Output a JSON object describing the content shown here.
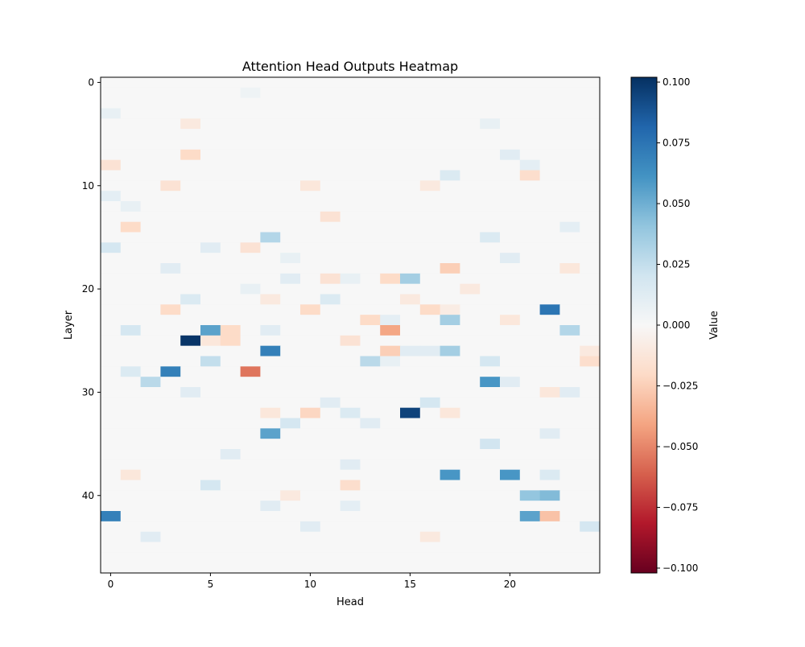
{
  "chart_data": {
    "type": "heatmap",
    "title": "Attention Head Outputs Heatmap",
    "xlabel": "Head",
    "ylabel": "Layer",
    "colorbar_label": "Value",
    "colormap": [
      "#67001f",
      "#b2182b",
      "#d6604d",
      "#f4a582",
      "#fddbc7",
      "#f7f7f7",
      "#d1e5f0",
      "#92c5de",
      "#4393c3",
      "#2166ac",
      "#053061"
    ],
    "n_cols": 25,
    "n_rows": 48,
    "vlim": [
      -0.102,
      0.102
    ],
    "default_value": 0.0,
    "x_ticks": [
      "0",
      "5",
      "10",
      "15",
      "20"
    ],
    "x_tick_values": [
      0,
      5,
      10,
      15,
      20
    ],
    "y_ticks": [
      "0",
      "10",
      "20",
      "30",
      "40"
    ],
    "y_tick_values": [
      0,
      10,
      20,
      30,
      40
    ],
    "colorbar_ticks": [
      "0.100",
      "0.075",
      "0.050",
      "0.025",
      "0.000",
      "−0.025",
      "−0.050",
      "−0.075",
      "−0.100"
    ],
    "colorbar_tick_values": [
      0.1,
      0.075,
      0.05,
      0.025,
      0,
      -0.025,
      -0.05,
      -0.075,
      -0.1
    ],
    "cells": [
      [
        1,
        7,
        0.005
      ],
      [
        3,
        0,
        0.008
      ],
      [
        4,
        4,
        -0.01
      ],
      [
        4,
        19,
        0.008
      ],
      [
        7,
        4,
        -0.02
      ],
      [
        7,
        20,
        0.012
      ],
      [
        8,
        0,
        -0.015
      ],
      [
        8,
        21,
        0.01
      ],
      [
        9,
        17,
        0.015
      ],
      [
        9,
        21,
        -0.018
      ],
      [
        10,
        3,
        -0.015
      ],
      [
        10,
        10,
        -0.012
      ],
      [
        10,
        16,
        -0.01
      ],
      [
        11,
        0,
        0.01
      ],
      [
        12,
        1,
        0.008
      ],
      [
        13,
        11,
        -0.015
      ],
      [
        14,
        1,
        -0.02
      ],
      [
        14,
        23,
        0.01
      ],
      [
        15,
        8,
        0.03
      ],
      [
        15,
        19,
        0.015
      ],
      [
        16,
        0,
        0.018
      ],
      [
        16,
        5,
        0.012
      ],
      [
        16,
        7,
        -0.015
      ],
      [
        17,
        9,
        0.008
      ],
      [
        17,
        20,
        0.012
      ],
      [
        18,
        3,
        0.012
      ],
      [
        18,
        17,
        -0.025
      ],
      [
        18,
        23,
        -0.012
      ],
      [
        19,
        9,
        0.012
      ],
      [
        19,
        11,
        -0.015
      ],
      [
        19,
        12,
        0.008
      ],
      [
        19,
        14,
        -0.02
      ],
      [
        19,
        15,
        0.035
      ],
      [
        20,
        7,
        0.008
      ],
      [
        20,
        18,
        -0.01
      ],
      [
        21,
        4,
        0.015
      ],
      [
        21,
        8,
        -0.01
      ],
      [
        21,
        11,
        0.015
      ],
      [
        21,
        15,
        -0.01
      ],
      [
        22,
        3,
        -0.02
      ],
      [
        22,
        10,
        -0.02
      ],
      [
        22,
        16,
        -0.02
      ],
      [
        22,
        17,
        -0.008
      ],
      [
        22,
        22,
        0.075
      ],
      [
        23,
        13,
        -0.02
      ],
      [
        23,
        14,
        0.01
      ],
      [
        23,
        17,
        0.035
      ],
      [
        23,
        20,
        -0.012
      ],
      [
        24,
        1,
        0.018
      ],
      [
        24,
        5,
        0.055
      ],
      [
        24,
        6,
        -0.02
      ],
      [
        24,
        8,
        0.012
      ],
      [
        24,
        14,
        -0.04
      ],
      [
        24,
        23,
        0.03
      ],
      [
        25,
        4,
        0.1
      ],
      [
        25,
        5,
        -0.012
      ],
      [
        25,
        6,
        -0.02
      ],
      [
        25,
        12,
        -0.015
      ],
      [
        26,
        8,
        0.07
      ],
      [
        26,
        14,
        -0.025
      ],
      [
        26,
        15,
        0.012
      ],
      [
        26,
        16,
        0.012
      ],
      [
        26,
        17,
        0.035
      ],
      [
        26,
        24,
        -0.01
      ],
      [
        27,
        5,
        0.025
      ],
      [
        27,
        13,
        0.028
      ],
      [
        27,
        14,
        0.008
      ],
      [
        27,
        19,
        0.018
      ],
      [
        27,
        24,
        -0.018
      ],
      [
        28,
        1,
        0.015
      ],
      [
        28,
        3,
        0.07
      ],
      [
        28,
        7,
        -0.055
      ],
      [
        29,
        2,
        0.028
      ],
      [
        29,
        19,
        0.06
      ],
      [
        29,
        20,
        0.012
      ],
      [
        30,
        4,
        0.012
      ],
      [
        30,
        22,
        -0.012
      ],
      [
        30,
        23,
        0.012
      ],
      [
        31,
        11,
        0.012
      ],
      [
        31,
        16,
        0.018
      ],
      [
        32,
        8,
        -0.012
      ],
      [
        32,
        10,
        -0.022
      ],
      [
        32,
        12,
        0.015
      ],
      [
        32,
        15,
        0.095
      ],
      [
        32,
        17,
        -0.012
      ],
      [
        33,
        9,
        0.018
      ],
      [
        33,
        13,
        0.012
      ],
      [
        34,
        8,
        0.055
      ],
      [
        34,
        22,
        0.012
      ],
      [
        35,
        19,
        0.02
      ],
      [
        36,
        6,
        0.012
      ],
      [
        37,
        12,
        0.012
      ],
      [
        38,
        1,
        -0.012
      ],
      [
        38,
        17,
        0.06
      ],
      [
        38,
        20,
        0.06
      ],
      [
        38,
        22,
        0.015
      ],
      [
        39,
        5,
        0.018
      ],
      [
        39,
        12,
        -0.018
      ],
      [
        40,
        9,
        -0.01
      ],
      [
        40,
        21,
        0.04
      ],
      [
        40,
        22,
        0.045
      ],
      [
        41,
        8,
        0.012
      ],
      [
        41,
        12,
        0.01
      ],
      [
        42,
        0,
        0.07
      ],
      [
        42,
        21,
        0.055
      ],
      [
        42,
        22,
        -0.03
      ],
      [
        43,
        10,
        0.012
      ],
      [
        43,
        24,
        0.018
      ],
      [
        44,
        2,
        0.012
      ],
      [
        44,
        16,
        -0.01
      ]
    ]
  }
}
